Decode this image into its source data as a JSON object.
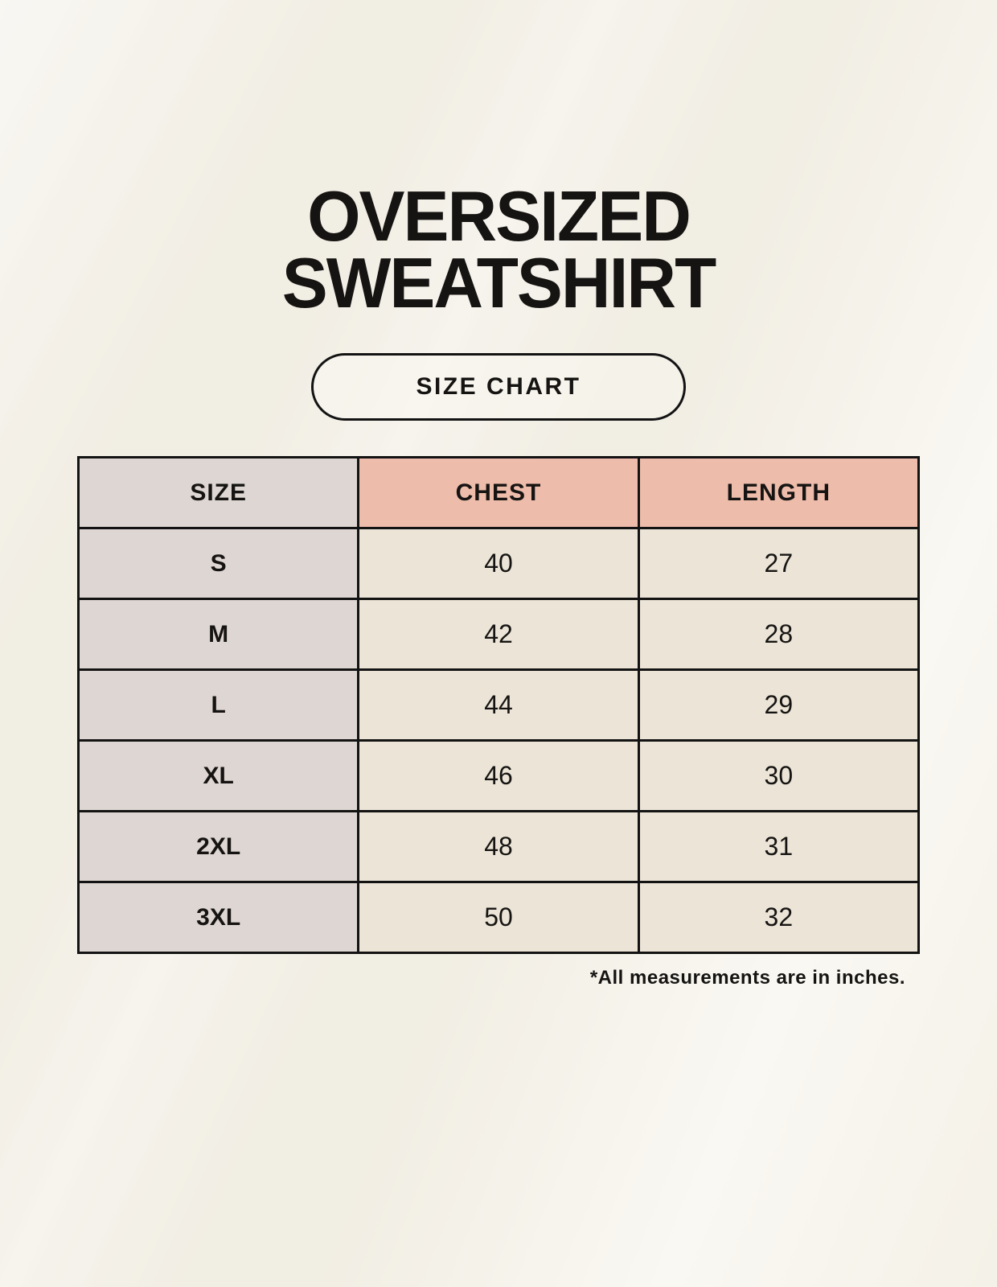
{
  "page": {
    "title_line1": "OVERSIZED",
    "title_line2": "SWEATSHIRT",
    "size_chart_label": "SIZE CHART",
    "footnote": "*All measurements are in inches."
  },
  "table": {
    "headers": {
      "size": "SIZE",
      "chest": "CHEST",
      "length": "LENGTH"
    },
    "rows": [
      {
        "size": "S",
        "chest": "40",
        "length": "27"
      },
      {
        "size": "M",
        "chest": "42",
        "length": "28"
      },
      {
        "size": "L",
        "chest": "44",
        "length": "29"
      },
      {
        "size": "XL",
        "chest": "46",
        "length": "30"
      },
      {
        "size": "2XL",
        "chest": "48",
        "length": "31"
      },
      {
        "size": "3XL",
        "chest": "50",
        "length": "32"
      }
    ]
  },
  "colors": {
    "background": "#f6f3ea",
    "header_accent": "#eebcab",
    "size_column": "#ded6d2",
    "cell": "#ebe4d7",
    "border": "#131313",
    "text": "#161412"
  },
  "chart_data": {
    "type": "table",
    "title": "OVERSIZED SWEATSHIRT",
    "subtitle": "SIZE CHART",
    "columns": [
      "SIZE",
      "CHEST",
      "LENGTH"
    ],
    "rows": [
      [
        "S",
        40,
        27
      ],
      [
        "M",
        42,
        28
      ],
      [
        "L",
        44,
        29
      ],
      [
        "XL",
        46,
        30
      ],
      [
        "2XL",
        48,
        31
      ],
      [
        "3XL",
        50,
        32
      ]
    ],
    "footnote": "*All measurements are in inches.",
    "units": "inches"
  }
}
